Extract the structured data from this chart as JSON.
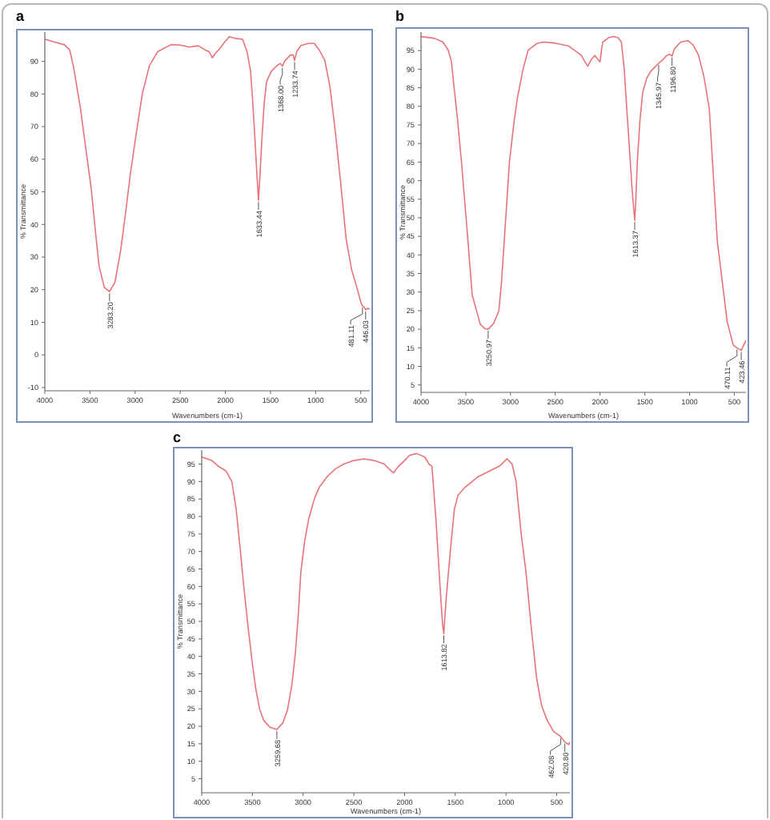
{
  "chart_data": [
    {
      "type": "line",
      "title": "a",
      "xlabel": "Wavenumbers (cm-1)",
      "ylabel": "% Transmittance",
      "xlim": [
        4000,
        400
      ],
      "ylim": [
        -11,
        99
      ],
      "xticks": [
        4000,
        3500,
        3000,
        2500,
        2000,
        1500,
        1000,
        500
      ],
      "yticks": [
        -10,
        0,
        10,
        20,
        30,
        40,
        50,
        60,
        70,
        80,
        90
      ],
      "x": [
        4000,
        3900,
        3783,
        3724,
        3680,
        3606,
        3540,
        3488,
        3440,
        3399,
        3341,
        3283,
        3223,
        3160,
        3106,
        3050,
        2988,
        2920,
        2841,
        2750,
        2604,
        2500,
        2399,
        2300,
        2223,
        2180,
        2145,
        2110,
        2074,
        2020,
        1957,
        1880,
        1809,
        1760,
        1721,
        1700,
        1675,
        1650,
        1633,
        1615,
        1592,
        1570,
        1544,
        1490,
        1428,
        1390,
        1368,
        1345,
        1280,
        1250,
        1233,
        1210,
        1162,
        1080,
        1014,
        960,
        898,
        840,
        779,
        720,
        661,
        600,
        544,
        496,
        481,
        460,
        446,
        426,
        400
      ],
      "series": [
        {
          "color": "#e8737b",
          "values": [
            96.8,
            96,
            95.1,
            93.5,
            88,
            75.7,
            62,
            51.5,
            38,
            27.2,
            20.7,
            19.4,
            22.3,
            32,
            43.4,
            56,
            67.7,
            80,
            88.7,
            93,
            95.1,
            95,
            94.4,
            94.8,
            93.5,
            93,
            91.1,
            92.5,
            93.5,
            95.5,
            97.6,
            97,
            96.8,
            93,
            87.1,
            79,
            67.7,
            55,
            47.4,
            56,
            67.7,
            77,
            83.8,
            87,
            88.7,
            89.4,
            88.5,
            90,
            91.9,
            92,
            90.3,
            93,
            94.9,
            95.5,
            95.5,
            93.5,
            90.3,
            82,
            67.7,
            52,
            35.3,
            26,
            20.7,
            15.9,
            15,
            14.6,
            13.8,
            14.3,
            14
          ]
        }
      ],
      "annotations": [
        {
          "text": "3283.20",
          "x": 3283,
          "y": 19.4
        },
        {
          "text": "1633.44",
          "x": 1633,
          "y": 47.4
        },
        {
          "text": "1368.00",
          "x": 1368,
          "y": 88.5
        },
        {
          "text": "1233.74",
          "x": 1233,
          "y": 90.3
        },
        {
          "text": "481.11",
          "x": 481,
          "y": 15
        },
        {
          "text": "446.03",
          "x": 446,
          "y": 13.8
        }
      ]
    },
    {
      "type": "line",
      "title": "b",
      "xlabel": "Wavenumbers (cm-1)",
      "ylabel": "% Transmittance",
      "xlim": [
        4000,
        370
      ],
      "ylim": [
        3,
        100
      ],
      "xticks": [
        4000,
        3500,
        3000,
        2500,
        2000,
        1500,
        1000,
        500
      ],
      "yticks": [
        5,
        10,
        15,
        20,
        25,
        30,
        35,
        40,
        45,
        50,
        55,
        60,
        65,
        70,
        75,
        80,
        85,
        90,
        95
      ],
      "x": [
        4000,
        3850,
        3755,
        3696,
        3660,
        3637,
        3590,
        3548,
        3475,
        3429,
        3339,
        3290,
        3250,
        3190,
        3130,
        3100,
        3071,
        3012,
        2960,
        2923,
        2860,
        2804,
        2700,
        2625,
        2500,
        2357,
        2280,
        2209,
        2170,
        2137,
        2100,
        2059,
        2020,
        2000,
        1985,
        1970,
        1900,
        1851,
        1800,
        1762,
        1730,
        1702,
        1670,
        1643,
        1613,
        1600,
        1584,
        1555,
        1524,
        1480,
        1435,
        1390,
        1345,
        1300,
        1256,
        1220,
        1196,
        1170,
        1100,
        1018,
        960,
        899,
        840,
        780,
        690,
        580,
        512,
        470,
        423,
        390,
        370
      ],
      "series": [
        {
          "color": "#e8737b",
          "values": [
            98.8,
            98.3,
            97.3,
            95.1,
            92,
            86.5,
            76,
            65,
            43.6,
            29.3,
            21.4,
            20.2,
            20,
            21.5,
            25,
            33,
            43.6,
            65.1,
            76,
            82.3,
            90,
            95.1,
            97,
            97.3,
            97,
            96.3,
            95,
            93.7,
            92,
            90.8,
            92.5,
            93.7,
            92.5,
            92,
            95,
            97.3,
            98.5,
            98.8,
            98.5,
            97.3,
            90,
            79.4,
            68,
            57.9,
            49.3,
            55,
            65.1,
            76,
            83.7,
            87.5,
            89.4,
            90.5,
            91.6,
            92.5,
            93.7,
            94,
            93.5,
            95.5,
            97.3,
            97.7,
            96.5,
            93.7,
            88,
            79.4,
            43.6,
            22,
            15.7,
            15,
            14.3,
            16,
            17
          ]
        }
      ],
      "annotations": [
        {
          "text": "3250.97",
          "x": 3250,
          "y": 20
        },
        {
          "text": "1613.37",
          "x": 1613,
          "y": 49.3
        },
        {
          "text": "1345.97",
          "x": 1345,
          "y": 91.6
        },
        {
          "text": "1196.80",
          "x": 1196,
          "y": 93.5
        },
        {
          "text": "470.11",
          "x": 470,
          "y": 15
        },
        {
          "text": "423.46",
          "x": 423,
          "y": 14.3
        }
      ]
    },
    {
      "type": "line",
      "title": "c",
      "xlabel": "Wavenumbers (cm-1)",
      "ylabel": "% Transmittance",
      "xlim": [
        4000,
        370
      ],
      "ylim": [
        1,
        99
      ],
      "xticks": [
        4000,
        3500,
        3000,
        2500,
        2000,
        1500,
        1000,
        500
      ],
      "yticks": [
        5,
        10,
        15,
        20,
        25,
        30,
        35,
        40,
        45,
        50,
        55,
        60,
        65,
        70,
        75,
        80,
        85,
        90,
        95
      ],
      "x": [
        4000,
        3900,
        3832,
        3760,
        3702,
        3660,
        3624,
        3585,
        3545,
        3505,
        3467,
        3430,
        3389,
        3330,
        3259,
        3200,
        3154,
        3110,
        3075,
        3045,
        3023,
        2985,
        2945,
        2890,
        2840,
        2760,
        2683,
        2600,
        2500,
        2400,
        2300,
        2200,
        2150,
        2108,
        2070,
        2000,
        1951,
        1880,
        1800,
        1760,
        1730,
        1691,
        1649,
        1625,
        1613,
        1590,
        1544,
        1508,
        1472,
        1403,
        1273,
        1064,
        990,
        940,
        900,
        881,
        850,
        803,
        750,
        698,
        650,
        594,
        530,
        462,
        420,
        380,
        370
      ],
      "series": [
        {
          "color": "#e8737b",
          "values": [
            97,
            96,
            94.3,
            93,
            89.9,
            82,
            71.7,
            60,
            49,
            39,
            30.8,
            25,
            21.7,
            19.8,
            19.1,
            21,
            24.7,
            32,
            41.4,
            53,
            64.1,
            73,
            79.3,
            85,
            88.4,
            91.5,
            93.6,
            95,
            96,
            96.5,
            96,
            95,
            93.5,
            92.5,
            94,
            96,
            97.5,
            98,
            97,
            95,
            94.4,
            79.3,
            59.5,
            49,
            46.5,
            56.5,
            71.7,
            82.3,
            86.1,
            88.4,
            91.4,
            94.4,
            96.5,
            95,
            90,
            84,
            75,
            64.1,
            48,
            33.8,
            26,
            21.7,
            18.5,
            17.1,
            15.5,
            14.8,
            15.5
          ]
        }
      ],
      "annotations": [
        {
          "text": "3259.68",
          "x": 3259,
          "y": 19.1
        },
        {
          "text": "1613.82",
          "x": 1613,
          "y": 46.5
        },
        {
          "text": "462.08",
          "x": 462,
          "y": 17.1
        },
        {
          "text": "420.80",
          "x": 420,
          "y": 15.5
        }
      ]
    }
  ]
}
